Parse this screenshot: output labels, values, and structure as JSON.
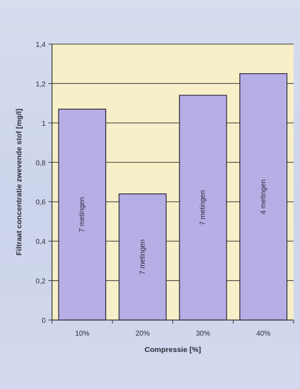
{
  "chart_data": {
    "type": "bar",
    "title": "",
    "categories": [
      "10%",
      "20%",
      "30%",
      "40%"
    ],
    "values": [
      1.07,
      0.64,
      1.14,
      1.25
    ],
    "bar_labels": [
      "7 metingen",
      "7 metingen",
      "7 metingen",
      "4 metingen"
    ],
    "xlabel": "Compressie [%]",
    "ylabel": "Filtraat concentratie zwevende stof [mg/l]",
    "ylim": [
      0,
      1.4
    ],
    "yticks": [
      0,
      0.2,
      0.4,
      0.6,
      0.8,
      1,
      1.2,
      1.4
    ],
    "ytick_labels": [
      "0",
      "0,2",
      "0,4",
      "0,6",
      "0,8",
      "1",
      "1,2",
      "1,4"
    ],
    "grid": true,
    "legend": "none",
    "colors": {
      "bar_fill": "#b7aee6",
      "bar_stroke": "#2a2a3a",
      "plot_bg": "#f7efc8",
      "gridline": "#3a3a3a",
      "axis": "#3a3a3a",
      "text": "#2c2c3a"
    }
  }
}
